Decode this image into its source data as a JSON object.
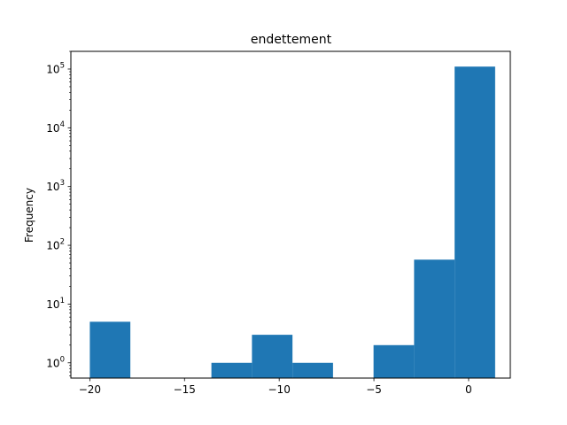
{
  "chart_data": {
    "type": "bar",
    "title": "endettement",
    "xlabel": "",
    "ylabel": "Frequency",
    "yscale": "log",
    "grid": false,
    "color": "#1f77b4",
    "xlim": [
      -21.0,
      2.2
    ],
    "ylim": [
      0.55,
      200000
    ],
    "bins": [
      {
        "x0": -20.0,
        "x1": -17.86,
        "count": 5
      },
      {
        "x0": -17.86,
        "x1": -15.72,
        "count": 0
      },
      {
        "x0": -15.72,
        "x1": -13.58,
        "count": 0
      },
      {
        "x0": -13.58,
        "x1": -11.44,
        "count": 1
      },
      {
        "x0": -11.44,
        "x1": -9.3,
        "count": 3
      },
      {
        "x0": -9.3,
        "x1": -7.16,
        "count": 1
      },
      {
        "x0": -7.16,
        "x1": -5.02,
        "count": 0
      },
      {
        "x0": -5.02,
        "x1": -2.88,
        "count": 2
      },
      {
        "x0": -2.88,
        "x1": -0.74,
        "count": 57
      },
      {
        "x0": -0.74,
        "x1": 1.4,
        "count": 110000
      }
    ],
    "x_ticks": [
      {
        "value": -20,
        "label": "−20"
      },
      {
        "value": -15,
        "label": "−15"
      },
      {
        "value": -10,
        "label": "−10"
      },
      {
        "value": -5,
        "label": "−5"
      },
      {
        "value": 0,
        "label": "0"
      }
    ],
    "y_ticks": [
      {
        "value": 1,
        "base": "10",
        "exp": "0"
      },
      {
        "value": 10,
        "base": "10",
        "exp": "1"
      },
      {
        "value": 100,
        "base": "10",
        "exp": "2"
      },
      {
        "value": 1000,
        "base": "10",
        "exp": "3"
      },
      {
        "value": 10000,
        "base": "10",
        "exp": "4"
      },
      {
        "value": 100000,
        "base": "10",
        "exp": "5"
      }
    ]
  }
}
